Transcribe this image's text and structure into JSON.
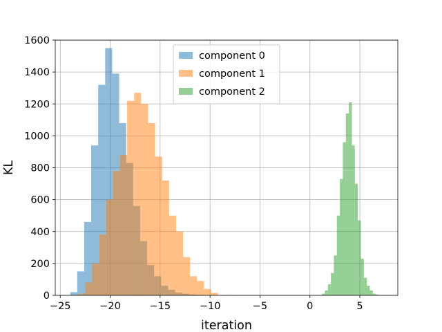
{
  "chart_data": {
    "type": "histogram",
    "xlabel": "iteration",
    "ylabel": "KL",
    "xlim": [
      -25.5,
      8.8
    ],
    "ylim": [
      0,
      1600
    ],
    "xticks": [
      -25,
      -20,
      -15,
      -10,
      -5,
      0,
      5
    ],
    "xtick_labels": [
      "−25",
      "−20",
      "−15",
      "−10",
      "−5",
      "0",
      "5"
    ],
    "yticks": [
      0,
      200,
      400,
      600,
      800,
      1000,
      1200,
      1400,
      1600
    ],
    "ytick_labels": [
      "0",
      "200",
      "400",
      "600",
      "800",
      "1000",
      "1200",
      "1400",
      "1600"
    ],
    "grid": true,
    "legend_position": "upper center",
    "series": [
      {
        "name": "component 0",
        "color": "#1f77b4",
        "alpha": 0.5,
        "bin_edges": [
          -24,
          -23.3,
          -22.6,
          -21.9,
          -21.2,
          -20.5,
          -19.8,
          -19.1,
          -18.4,
          -17.7,
          -17.0,
          -16.3,
          -15.6,
          -14.9,
          -14.2,
          -13.5,
          -12.8,
          -12.1,
          -11.4,
          -10.7,
          -10.0,
          -9.3,
          -8.6,
          -7.9,
          -7.2
        ],
        "counts": [
          20,
          150,
          460,
          940,
          1320,
          1550,
          1390,
          1080,
          830,
          560,
          340,
          190,
          120,
          60,
          35,
          18,
          10,
          5,
          3,
          2,
          1,
          0,
          2,
          1
        ]
      },
      {
        "name": "component 1",
        "color": "#ff7f0e",
        "alpha": 0.5,
        "bin_edges": [
          -23.2,
          -22.5,
          -21.8,
          -21.1,
          -20.4,
          -19.7,
          -19.0,
          -18.3,
          -17.6,
          -16.9,
          -16.2,
          -15.5,
          -14.8,
          -14.1,
          -13.4,
          -12.7,
          -12.0,
          -11.3,
          -10.6,
          -9.9,
          -9.2
        ],
        "counts": [
          10,
          80,
          200,
          380,
          600,
          780,
          880,
          1220,
          1270,
          1200,
          1080,
          870,
          720,
          500,
          400,
          240,
          120,
          90,
          40,
          15
        ]
      },
      {
        "name": "component 2",
        "color": "#2ca02c",
        "alpha": 0.5,
        "bin_edges": [
          1.2,
          1.5,
          1.8,
          2.1,
          2.4,
          2.7,
          3.0,
          3.3,
          3.6,
          3.9,
          4.2,
          4.5,
          4.8,
          5.1,
          5.4,
          5.7,
          6.0,
          6.3,
          6.6,
          6.9,
          7.2
        ],
        "counts": [
          10,
          30,
          70,
          140,
          250,
          500,
          730,
          960,
          1140,
          1210,
          940,
          700,
          470,
          230,
          110,
          60,
          30,
          10,
          5,
          2
        ]
      }
    ]
  }
}
